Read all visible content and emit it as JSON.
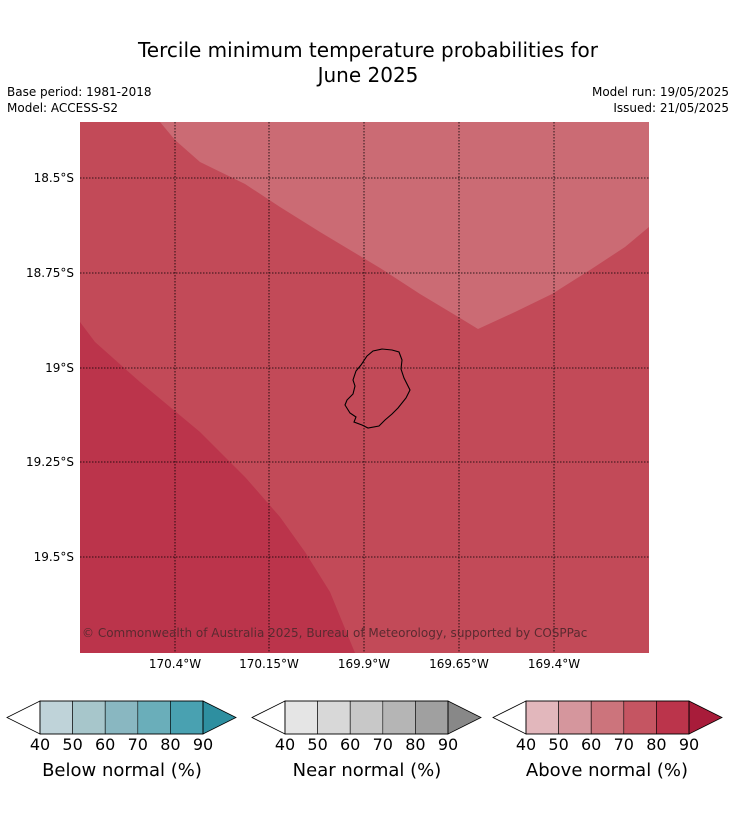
{
  "title_line1": "Tercile minimum temperature probabilities for",
  "title_line2": "June 2025",
  "base_period": "Base period: 1981-2018",
  "model": "Model: ACCESS-S2",
  "model_run": "Model run: 19/05/2025",
  "issued": "Issued: 21/05/2025",
  "map": {
    "lat_labels": [
      "18.5°S",
      "18.75°S",
      "19°S",
      "19.25°S",
      "19.5°S"
    ],
    "lon_labels": [
      "170.4°W",
      "170.15°W",
      "169.9°W",
      "169.65°W",
      "169.4°W"
    ],
    "island": "Niue",
    "zones": [
      {
        "category": "Above normal",
        "range": "60-70%",
        "color": "#cb6b74"
      },
      {
        "category": "Above normal",
        "range": "70-80%",
        "color": "#c24a58"
      },
      {
        "category": "Above normal",
        "range": "80-90%",
        "color": "#bb344b"
      }
    ],
    "copyright": "© Commonwealth of Australia 2025, Bureau of Meteorology, supported by COSPPac"
  },
  "colorbars": [
    {
      "label": "Below normal (%)",
      "ticks": [
        "40",
        "50",
        "60",
        "70",
        "80",
        "90"
      ],
      "colors": [
        "#bfd3d9",
        "#a7c6cb",
        "#89b7c1",
        "#6aaeba",
        "#49a1b1",
        "#2e8fa0"
      ]
    },
    {
      "label": "Near normal (%)",
      "ticks": [
        "40",
        "50",
        "60",
        "70",
        "80",
        "90"
      ],
      "colors": [
        "#e5e5e5",
        "#d8d8d8",
        "#c8c8c8",
        "#b5b5b5",
        "#a0a0a0",
        "#888888"
      ]
    },
    {
      "label": "Above normal (%)",
      "ticks": [
        "40",
        "50",
        "60",
        "70",
        "80",
        "90"
      ],
      "colors": [
        "#e2b7bc",
        "#d5969d",
        "#cc747c",
        "#c55562",
        "#bb344b",
        "#a81c3a"
      ]
    }
  ]
}
